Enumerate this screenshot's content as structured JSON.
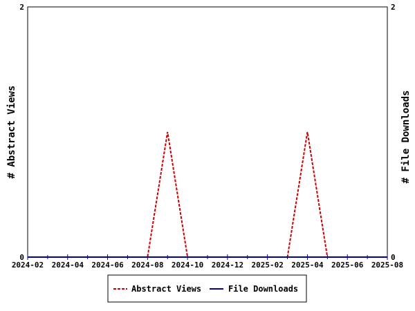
{
  "chart_data": {
    "type": "line",
    "x": [
      "2024-02",
      "2024-03",
      "2024-04",
      "2024-05",
      "2024-06",
      "2024-07",
      "2024-08",
      "2024-09",
      "2024-10",
      "2024-11",
      "2024-12",
      "2025-01",
      "2025-02",
      "2025-03",
      "2025-04",
      "2025-05",
      "2025-06",
      "2025-07",
      "2025-08"
    ],
    "series": [
      {
        "name": "Abstract Views",
        "axis": "left",
        "color": "#cc0000",
        "style": "dashed",
        "values": [
          0,
          0,
          0,
          0,
          0,
          0,
          0,
          1,
          0,
          0,
          0,
          0,
          0,
          0,
          1,
          0,
          0,
          0,
          0
        ]
      },
      {
        "name": "File Downloads",
        "axis": "right",
        "color": "#000099",
        "style": "solid",
        "values": [
          0,
          0,
          0,
          0,
          0,
          0,
          0,
          0,
          0,
          0,
          0,
          0,
          0,
          0,
          0,
          0,
          0,
          0,
          0
        ]
      }
    ],
    "x_tick_labels": [
      "2024-02",
      "2024-04",
      "2024-06",
      "2024-08",
      "2024-10",
      "2024-12",
      "2025-02",
      "2025-04",
      "2025-06",
      "2025-08"
    ],
    "ylabel_left": "# Abstract Views",
    "ylabel_right": "# File Downloads",
    "ylim_left": [
      0,
      2
    ],
    "ylim_right": [
      0,
      2
    ],
    "y_tick_labels_left": [
      "0",
      "2"
    ],
    "y_tick_labels_right": [
      "0",
      "2"
    ],
    "grid": false,
    "legend_position": "bottom"
  }
}
